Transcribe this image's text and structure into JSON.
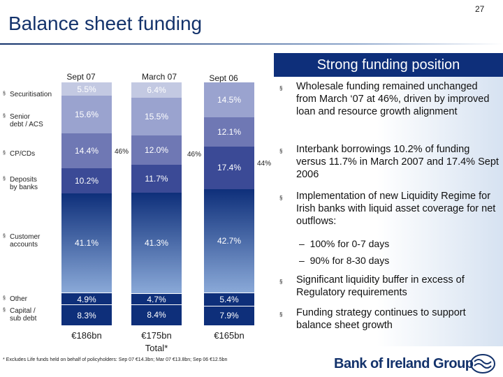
{
  "page_number": "27",
  "title": "Balance sheet funding",
  "panel_title": "Strong funding position",
  "columns": [
    {
      "header": "Sept 07",
      "total": "€186bn"
    },
    {
      "header": "March 07",
      "total": "€175bn",
      "total_note": "Total*"
    },
    {
      "header": "Sept 06",
      "total": "€165bn"
    }
  ],
  "row_labels": {
    "securitisation": "Securitisation",
    "senior_1": "Senior",
    "senior_2": "debt / ACS",
    "cp_cds": "CP/CDs",
    "deposits_1": "Deposits",
    "deposits_2": "by banks",
    "customer_1": "Customer",
    "customer_2": "accounts",
    "other": "Other",
    "capital_1": "Capital /",
    "capital_2": "sub debt"
  },
  "chart_data": {
    "type": "bar",
    "stacked": true,
    "categories": [
      "Sept 07",
      "March 07",
      "Sept 06"
    ],
    "series": [
      {
        "name": "Securitisation",
        "values": [
          5.5,
          6.4,
          0
        ],
        "labels": [
          "5.5%",
          "6.4%",
          ""
        ]
      },
      {
        "name": "Senior debt / ACS",
        "values": [
          15.6,
          15.5,
          14.5
        ],
        "labels": [
          "15.6%",
          "15.5%",
          "14.5%"
        ]
      },
      {
        "name": "CP/CDs",
        "values": [
          14.4,
          12.0,
          12.1
        ],
        "labels": [
          "14.4%",
          "12.0%",
          "12.1%"
        ]
      },
      {
        "name": "Deposits by banks",
        "values": [
          10.2,
          11.7,
          17.4
        ],
        "labels": [
          "10.2%",
          "11.7%",
          "17.4%"
        ]
      },
      {
        "name": "Customer accounts",
        "values": [
          41.1,
          41.3,
          42.7
        ],
        "labels": [
          "41.1%",
          "41.3%",
          "42.7%"
        ]
      },
      {
        "name": "Other",
        "values": [
          4.9,
          4.7,
          5.4
        ],
        "labels": [
          "4.9%",
          "4.7%",
          "5.4%"
        ]
      },
      {
        "name": "Capital / sub debt",
        "values": [
          8.3,
          8.4,
          7.9
        ],
        "labels": [
          "8.3%",
          "8.4%",
          "7.9%"
        ]
      }
    ],
    "wholesale_share_labels": [
      "46%",
      "46%",
      "44%"
    ],
    "colors": {
      "securitisation": "#c3c9e2",
      "senior": "#9aa3cf",
      "cp_cds": "#6f78b4",
      "deposits": "#3b4a96",
      "customer_top": "#0e2f7a",
      "customer_bottom": "#8aa9d8",
      "other": "#0e2f7a",
      "capital": "#0e2f7a"
    }
  },
  "bullets": [
    "Wholesale funding remained unchanged from March ‘07 at 46%, driven by improved loan and resource growth alignment",
    "Interbank borrowings 10.2% of funding versus 11.7% in March 2007 and 17.4% Sept 2006",
    "Implementation of new Liquidity Regime for Irish banks with liquid asset coverage for net outflows:",
    "Significant liquidity buffer in excess of Regulatory requirements",
    "Funding strategy continues to support balance sheet growth"
  ],
  "sub_bullets": [
    "100% for 0-7 days",
    "90% for 8-30 days"
  ],
  "bullet_marker": "§",
  "sub_marker": "–",
  "footnote": "* Excludes Life funds held on behalf of policyholders: Sep 07 €14.3bn; Mar 07 €13.8bn; Sep 06 €12.5bn",
  "logo_text": "Bank of Ireland Group"
}
